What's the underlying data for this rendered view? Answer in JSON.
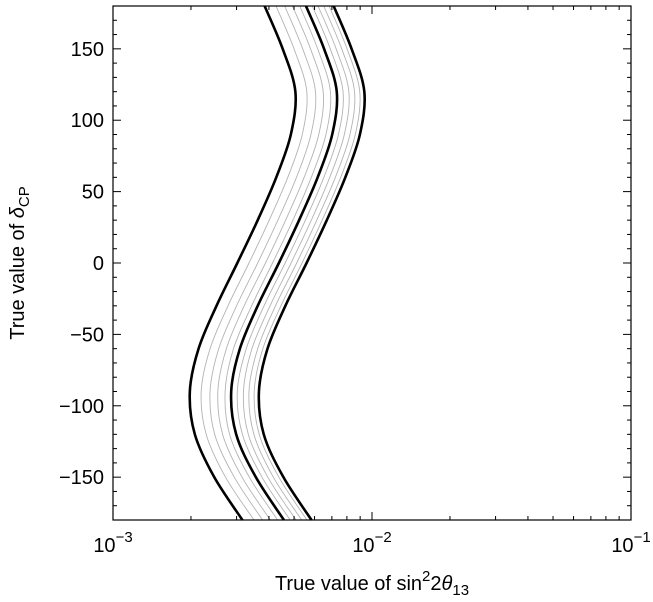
{
  "chart_data": {
    "type": "line",
    "xscale": "log",
    "xlim": [
      0.001,
      0.1
    ],
    "ylim": [
      -180,
      180
    ],
    "xlabel": {
      "prefix": "True value of sin",
      "sup": "2",
      "mid": "2",
      "symbol": "θ",
      "sub": "13"
    },
    "ylabel": {
      "prefix": "True value of ",
      "symbol": "δ",
      "sub": "CP"
    },
    "y_ticks": [
      {
        "value": 150,
        "label": "150"
      },
      {
        "value": 100,
        "label": "100"
      },
      {
        "value": 50,
        "label": "50"
      },
      {
        "value": 0,
        "label": "0"
      },
      {
        "value": -50,
        "label": "−50"
      },
      {
        "value": -100,
        "label": "−100"
      },
      {
        "value": -150,
        "label": "−150"
      }
    ],
    "x_ticks": [
      {
        "value": 0.001,
        "base": "10",
        "exp": "−3"
      },
      {
        "value": 0.01,
        "base": "10",
        "exp": "−2"
      },
      {
        "value": 0.1,
        "base": "10",
        "exp": "−1"
      }
    ],
    "y": [
      -180,
      -150,
      -120,
      -90,
      -60,
      -30,
      0,
      30,
      60,
      90,
      120,
      150,
      180
    ],
    "series": [
      {
        "style": "bold",
        "values": [
          0.00316,
          0.00246,
          0.00207,
          0.00198,
          0.00214,
          0.00251,
          0.00302,
          0.00362,
          0.00427,
          0.00486,
          0.00506,
          0.00452,
          0.00385
        ]
      },
      {
        "style": "thin",
        "values": [
          0.0035,
          0.00272,
          0.00229,
          0.00219,
          0.00237,
          0.00278,
          0.00335,
          0.00401,
          0.00473,
          0.00538,
          0.0056,
          0.005,
          0.00426
        ]
      },
      {
        "style": "thin",
        "values": [
          0.00378,
          0.00294,
          0.00247,
          0.00237,
          0.00256,
          0.003,
          0.00362,
          0.00433,
          0.00511,
          0.00581,
          0.00605,
          0.0054,
          0.0046
        ]
      },
      {
        "style": "thin",
        "values": [
          0.00405,
          0.00315,
          0.00265,
          0.00254,
          0.00274,
          0.00321,
          0.00388,
          0.00464,
          0.00547,
          0.00623,
          0.00648,
          0.00579,
          0.00493
        ]
      },
      {
        "style": "thin",
        "values": [
          0.00432,
          0.00336,
          0.00282,
          0.00271,
          0.00292,
          0.00343,
          0.00413,
          0.00495,
          0.00583,
          0.00664,
          0.00691,
          0.00617,
          0.00526
        ]
      },
      {
        "style": "bold",
        "values": [
          0.00457,
          0.00356,
          0.00299,
          0.00286,
          0.00309,
          0.00362,
          0.00437,
          0.00523,
          0.00617,
          0.00702,
          0.00731,
          0.00653,
          0.00556
        ]
      },
      {
        "style": "thin",
        "values": [
          0.00483,
          0.00376,
          0.00316,
          0.00302,
          0.00327,
          0.00383,
          0.00462,
          0.00553,
          0.00652,
          0.00742,
          0.00773,
          0.0069,
          0.00588
        ]
      },
      {
        "style": "thin",
        "values": [
          0.00509,
          0.00396,
          0.00333,
          0.00319,
          0.00344,
          0.00404,
          0.00487,
          0.00583,
          0.00687,
          0.00782,
          0.00814,
          0.00727,
          0.00619
        ]
      },
      {
        "style": "thin",
        "values": [
          0.00535,
          0.00416,
          0.0035,
          0.00335,
          0.00362,
          0.00424,
          0.00512,
          0.00612,
          0.00722,
          0.00822,
          0.00856,
          0.00764,
          0.00651
        ]
      },
      {
        "style": "thin",
        "values": [
          0.00561,
          0.00437,
          0.00367,
          0.00351,
          0.00379,
          0.00445,
          0.00537,
          0.00642,
          0.00757,
          0.00862,
          0.00897,
          0.00801,
          0.00683
        ]
      },
      {
        "style": "bold",
        "values": [
          0.00584,
          0.00455,
          0.00382,
          0.00366,
          0.00395,
          0.00463,
          0.00559,
          0.00669,
          0.00789,
          0.00898,
          0.00934,
          0.00834,
          0.00711
        ]
      }
    ]
  }
}
